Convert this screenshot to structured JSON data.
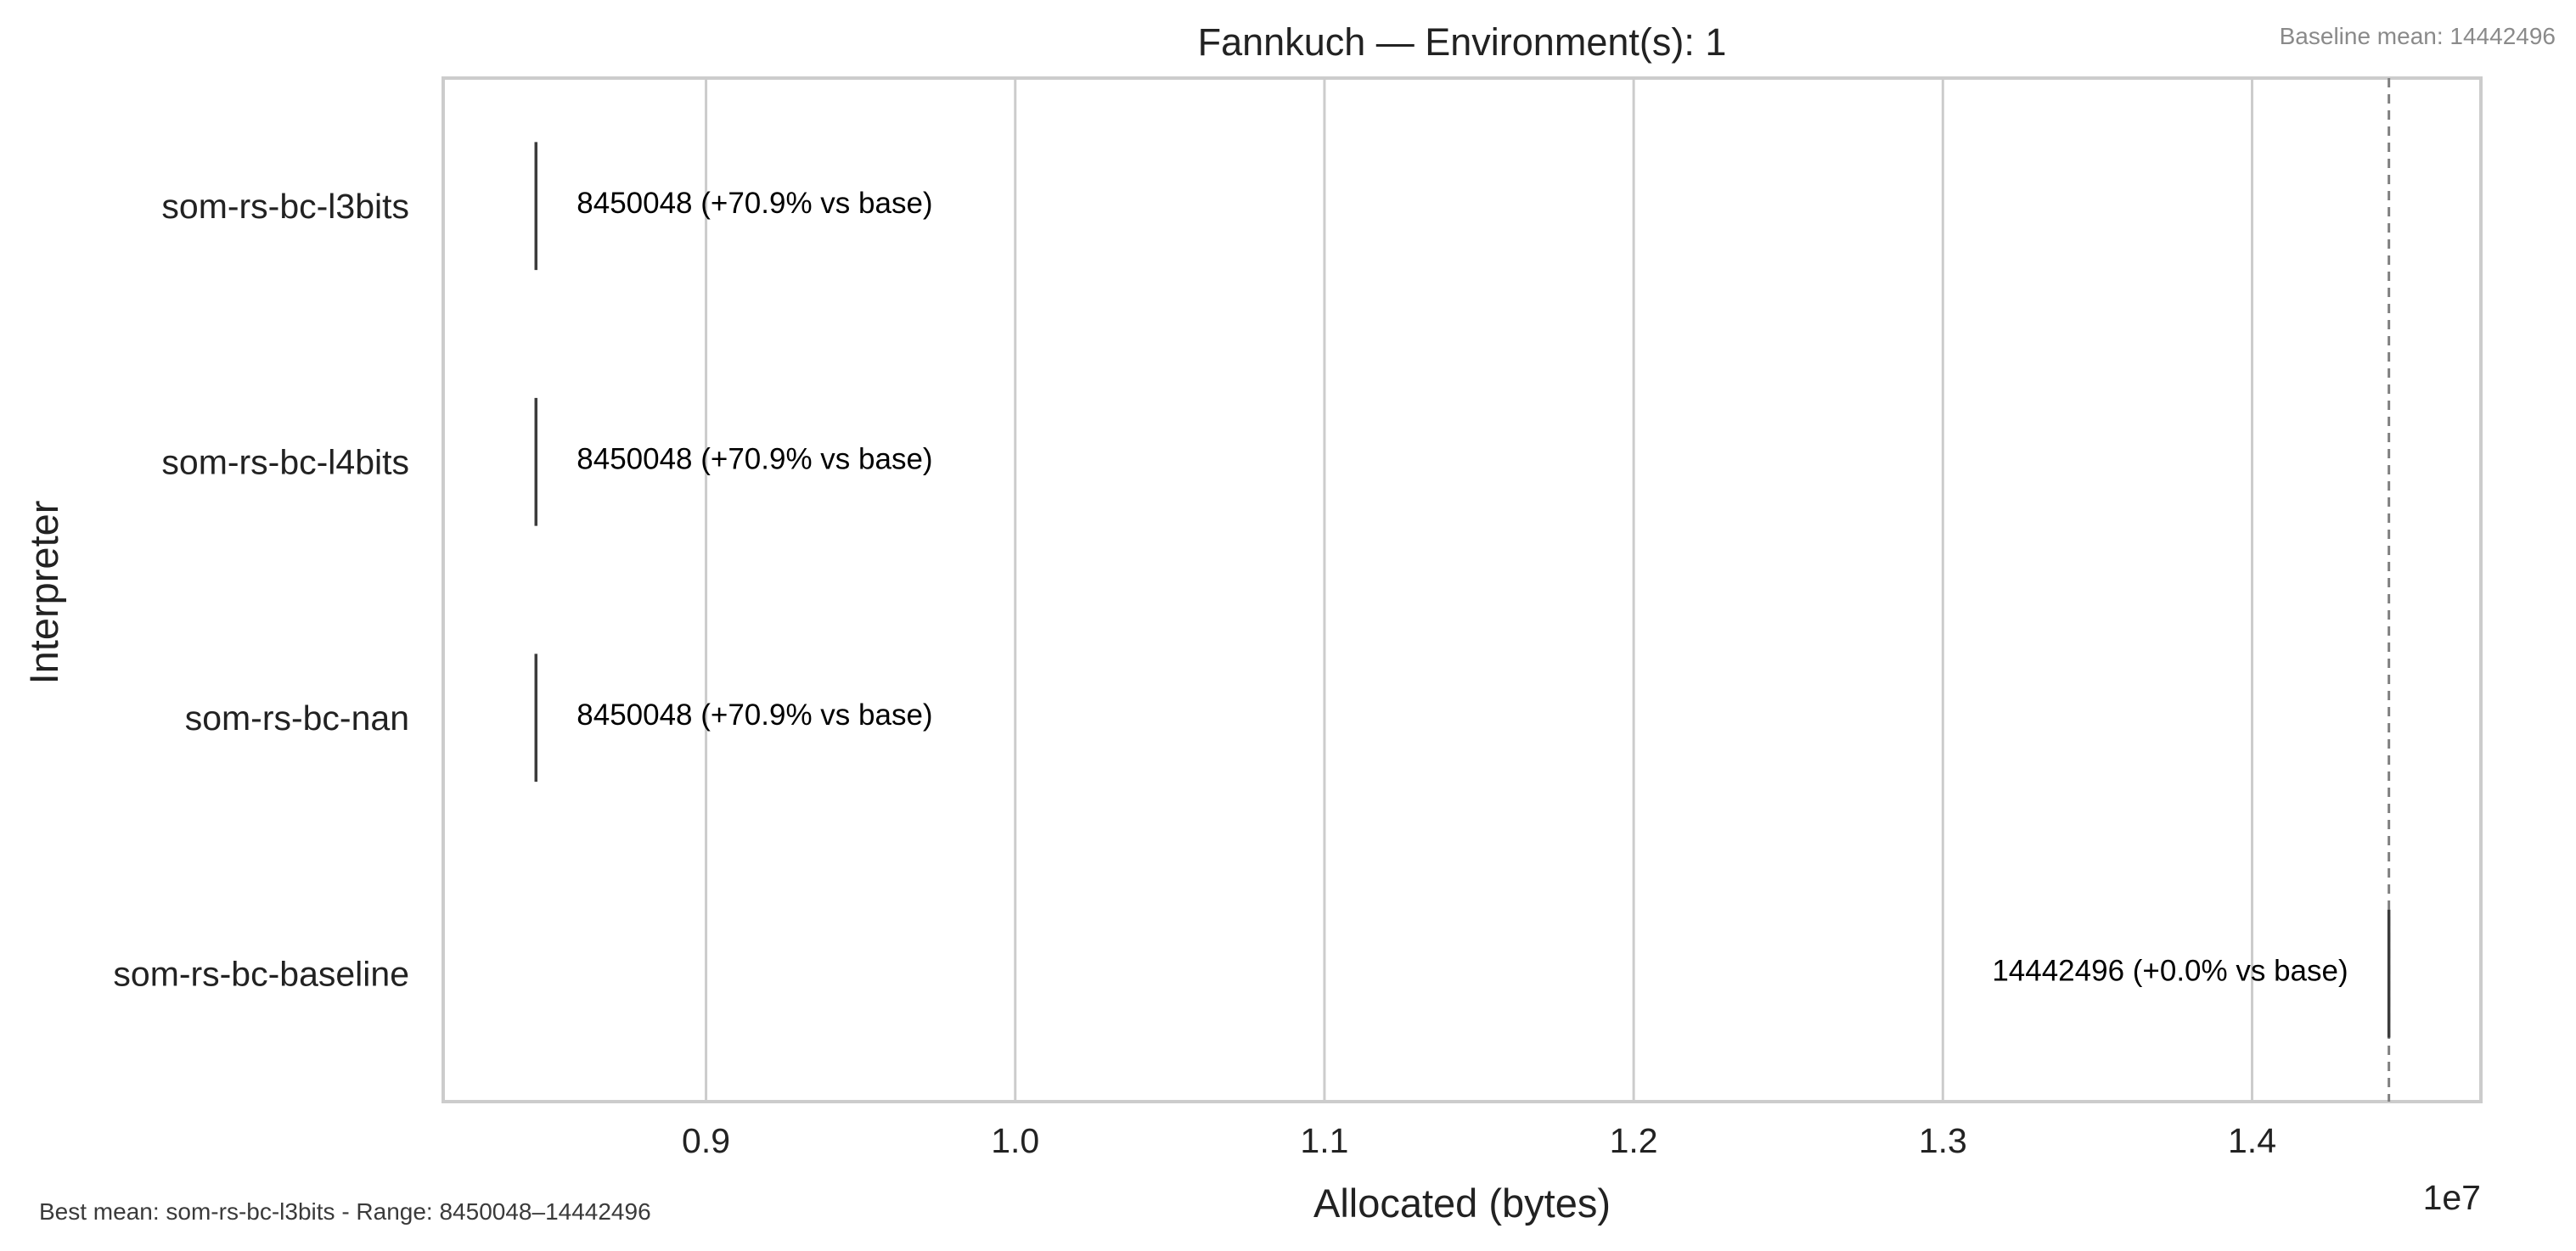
{
  "chart_data": {
    "type": "scatter",
    "title": "Fannkuch — Environment(s): 1",
    "xlabel": "Allocated (bytes)",
    "ylabel": "Interpreter",
    "x_scale_label": "1e7",
    "xlim": [
      8150000,
      14740000
    ],
    "x_ticks": [
      9000000,
      10000000,
      11000000,
      12000000,
      13000000,
      14000000
    ],
    "x_tick_labels": [
      "0.9",
      "1.0",
      "1.1",
      "1.2",
      "1.3",
      "1.4"
    ],
    "grid": true,
    "categories": [
      "som-rs-bc-l3bits",
      "som-rs-bc-l4bits",
      "som-rs-bc-nan",
      "som-rs-bc-baseline"
    ],
    "values": [
      8450048,
      8450048,
      8450048,
      14442496
    ],
    "data_labels": [
      "8450048  (+70.9% vs base)",
      "8450048  (+70.9% vs base)",
      "8450048  (+70.9% vs base)",
      "14442496  (+0.0% vs base)"
    ],
    "baseline_value": 14442496,
    "baseline_note": "Baseline mean: 14442496",
    "footer_note": "Best mean: som-rs-bc-l3bits - Range: 8450048–14442496"
  }
}
